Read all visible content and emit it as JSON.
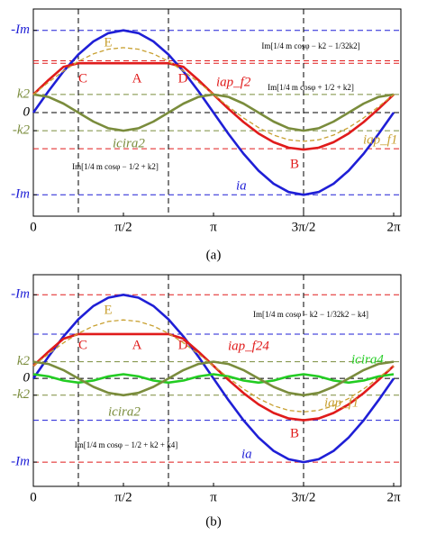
{
  "chart_data": [
    {
      "type": "line",
      "caption": "(a)",
      "x": [
        0,
        0.262,
        0.524,
        0.785,
        1.047,
        1.309,
        1.571,
        1.833,
        2.094,
        2.356,
        2.618,
        2.88,
        3.142,
        3.403,
        3.665,
        3.927,
        4.189,
        4.451,
        4.712,
        4.974,
        5.236,
        5.498,
        5.76,
        6.021,
        6.283
      ],
      "xlim": [
        0,
        6.283
      ],
      "xticks": [
        0,
        {
          "value": 1.571,
          "label": "π/2"
        },
        {
          "value": 3.142,
          "label": "π"
        },
        {
          "value": 4.712,
          "label": "3π/2"
        },
        {
          "value": 6.283,
          "label": "2π"
        }
      ],
      "ylim": [
        -1.26,
        1.26
      ],
      "yticks": [
        {
          "value": 1,
          "label": "-Im"
        },
        {
          "value": 0.22,
          "label": "k2"
        },
        0,
        {
          "value": -0.22,
          "label": "-k2"
        },
        {
          "value": -1,
          "label": "-Im"
        }
      ],
      "hlines": [
        {
          "value": 1,
          "color": "#1f1fd6"
        },
        {
          "value": 0.63,
          "color": "#e01b1b"
        },
        {
          "value": 0.6,
          "color": "#e01b1b"
        },
        {
          "value": 0.22,
          "color": "#7a8c3c"
        },
        {
          "value": 0,
          "color": "#000000"
        },
        {
          "value": -0.22,
          "color": "#7a8c3c"
        },
        {
          "value": -0.44,
          "color": "#e01b1b"
        },
        {
          "value": -1,
          "color": "#1f1fd6"
        }
      ],
      "vlines": [
        0.785,
        2.356,
        4.712
      ],
      "series": [
        {
          "name": "ia",
          "color": "#1f1fd6",
          "dashed": false,
          "values": [
            0,
            0.259,
            0.5,
            0.707,
            0.866,
            0.966,
            1,
            0.966,
            0.866,
            0.707,
            0.5,
            0.259,
            0,
            -0.259,
            -0.5,
            -0.707,
            -0.866,
            -0.966,
            -1,
            -0.966,
            -0.866,
            -0.707,
            -0.5,
            -0.259,
            0
          ]
        },
        {
          "name": "iap_f2",
          "color": "#e01b1b",
          "dashed": false,
          "values": [
            0.22,
            0.394,
            0.555,
            0.6,
            0.6,
            0.6,
            0.6,
            0.6,
            0.6,
            0.6,
            0.555,
            0.394,
            0.22,
            0.046,
            -0.115,
            -0.254,
            -0.36,
            -0.427,
            -0.45,
            -0.427,
            -0.36,
            -0.254,
            -0.115,
            0.046,
            0.22
          ]
        },
        {
          "name": "icira2",
          "color": "#7a8c3c",
          "dashed": false,
          "values": [
            0.22,
            0.191,
            0.11,
            0,
            -0.11,
            -0.191,
            -0.22,
            -0.191,
            -0.11,
            0,
            0.11,
            0.191,
            0.22,
            0.191,
            0.11,
            0,
            -0.11,
            -0.191,
            -0.22,
            -0.191,
            -0.11,
            0,
            0.11,
            0.191,
            0.22
          ]
        },
        {
          "name": "iap_f1",
          "color": "#c8a030",
          "dashed": true,
          "values": [
            0.22,
            0.368,
            0.505,
            0.623,
            0.714,
            0.771,
            0.79,
            0.771,
            0.714,
            0.623,
            0.505,
            0.368,
            0.22,
            0.072,
            -0.065,
            -0.183,
            -0.274,
            -0.331,
            -0.35,
            -0.331,
            -0.274,
            -0.183,
            -0.065,
            0.072,
            0.22
          ]
        }
      ],
      "annotations": [
        {
          "text": "E"
        },
        {
          "text": "C"
        },
        {
          "text": "A"
        },
        {
          "text": "D"
        },
        {
          "text": "B"
        },
        {
          "text": "Im[1/4 m cosφ − k2 − 1/32k2]"
        },
        {
          "text": "Im[1/4 m cosφ + 1/2 + k2]"
        },
        {
          "text": "Im[1/4 m cosφ − 1/2 + k2]"
        }
      ]
    },
    {
      "type": "line",
      "caption": "(b)",
      "x": [
        0,
        0.262,
        0.524,
        0.785,
        1.047,
        1.309,
        1.571,
        1.833,
        2.094,
        2.356,
        2.618,
        2.88,
        3.142,
        3.403,
        3.665,
        3.927,
        4.189,
        4.451,
        4.712,
        4.974,
        5.236,
        5.498,
        5.76,
        6.021,
        6.283
      ],
      "xlim": [
        0,
        6.283
      ],
      "xticks": [
        0,
        {
          "value": 1.571,
          "label": "π/2"
        },
        {
          "value": 3.142,
          "label": "π"
        },
        {
          "value": 4.712,
          "label": "3π/2"
        },
        {
          "value": 6.283,
          "label": "2π"
        }
      ],
      "ylim": [
        -1.29,
        1.24
      ],
      "yticks": [
        {
          "value": 1,
          "label": "-Im"
        },
        {
          "value": 0.2,
          "label": "k2"
        },
        0,
        {
          "value": -0.2,
          "label": "-k2"
        },
        {
          "value": -1,
          "label": "-Im"
        }
      ],
      "hlines": [
        {
          "value": 1,
          "color": "#e01b1b"
        },
        {
          "value": 0.53,
          "color": "#1f1fd6"
        },
        {
          "value": 0.2,
          "color": "#7a8c3c"
        },
        {
          "value": 0,
          "color": "#000000"
        },
        {
          "value": -0.2,
          "color": "#7a8c3c"
        },
        {
          "value": -0.5,
          "color": "#1f1fd6"
        },
        {
          "value": -1,
          "color": "#e01b1b"
        }
      ],
      "vlines": [
        0.785,
        2.356,
        4.712
      ],
      "series": [
        {
          "name": "ia",
          "color": "#1f1fd6",
          "dashed": false,
          "values": [
            0,
            0.259,
            0.5,
            0.707,
            0.866,
            0.966,
            1,
            0.966,
            0.866,
            0.707,
            0.5,
            0.259,
            0,
            -0.259,
            -0.5,
            -0.707,
            -0.866,
            -0.966,
            -1,
            -0.966,
            -0.866,
            -0.707,
            -0.5,
            -0.259,
            0
          ]
        },
        {
          "name": "iap_f24",
          "color": "#e01b1b",
          "dashed": false,
          "values": [
            0.15,
            0.318,
            0.475,
            0.53,
            0.53,
            0.53,
            0.53,
            0.53,
            0.53,
            0.53,
            0.475,
            0.318,
            0.15,
            -0.018,
            -0.175,
            -0.31,
            -0.413,
            -0.478,
            -0.5,
            -0.478,
            -0.413,
            -0.31,
            -0.175,
            -0.018,
            0.15
          ]
        },
        {
          "name": "icira4",
          "color": "#22cc22",
          "dashed": false,
          "values": [
            0.05,
            0.025,
            -0.025,
            -0.05,
            -0.025,
            0.025,
            0.05,
            0.025,
            -0.025,
            -0.05,
            -0.025,
            0.025,
            0.05,
            0.025,
            -0.025,
            -0.05,
            -0.025,
            0.025,
            0.05,
            0.025,
            -0.025,
            -0.05,
            -0.025,
            0.025,
            0.05
          ]
        },
        {
          "name": "icira2",
          "color": "#7a8c3c",
          "dashed": false,
          "values": [
            0.2,
            0.173,
            0.1,
            0,
            -0.1,
            -0.173,
            -0.2,
            -0.173,
            -0.1,
            0,
            0.1,
            0.173,
            0.2,
            0.173,
            0.1,
            0,
            -0.1,
            -0.173,
            -0.2,
            -0.173,
            -0.1,
            0,
            0.1,
            0.173,
            0.2
          ]
        },
        {
          "name": "iap_f1",
          "color": "#c8a030",
          "dashed": true,
          "values": [
            0.15,
            0.292,
            0.425,
            0.539,
            0.626,
            0.681,
            0.7,
            0.681,
            0.626,
            0.539,
            0.425,
            0.292,
            0.15,
            0.008,
            -0.125,
            -0.239,
            -0.326,
            -0.381,
            -0.4,
            -0.381,
            -0.326,
            -0.239,
            -0.125,
            0.008,
            0.15
          ]
        }
      ],
      "annotations": [
        {
          "text": "E"
        },
        {
          "text": "C"
        },
        {
          "text": "A"
        },
        {
          "text": "D"
        },
        {
          "text": "B"
        },
        {
          "text": "Im[1/4 m cosφ − k2 − 1/32k2 − k4]"
        },
        {
          "text": "Im[1/4 m cosφ − 1/2 + k2 + k4]"
        }
      ]
    }
  ]
}
